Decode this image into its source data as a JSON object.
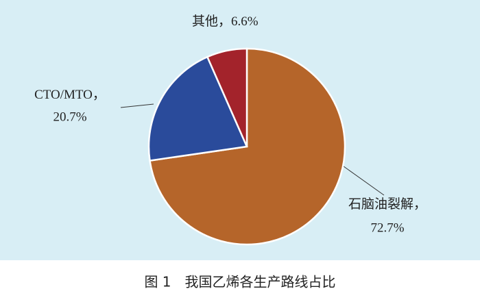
{
  "chart_data": {
    "type": "pie",
    "categories": [
      "石脑油裂解",
      "CTO/MTO",
      "其他"
    ],
    "values": [
      72.7,
      20.7,
      6.6
    ],
    "value_labels": [
      "72.7%",
      "20.7%",
      "6.6%"
    ],
    "separator": "，",
    "colors": [
      "#b5652a",
      "#2a4b9b",
      "#a3232b"
    ]
  },
  "caption": "图 1　我国乙烯各生产路线占比"
}
